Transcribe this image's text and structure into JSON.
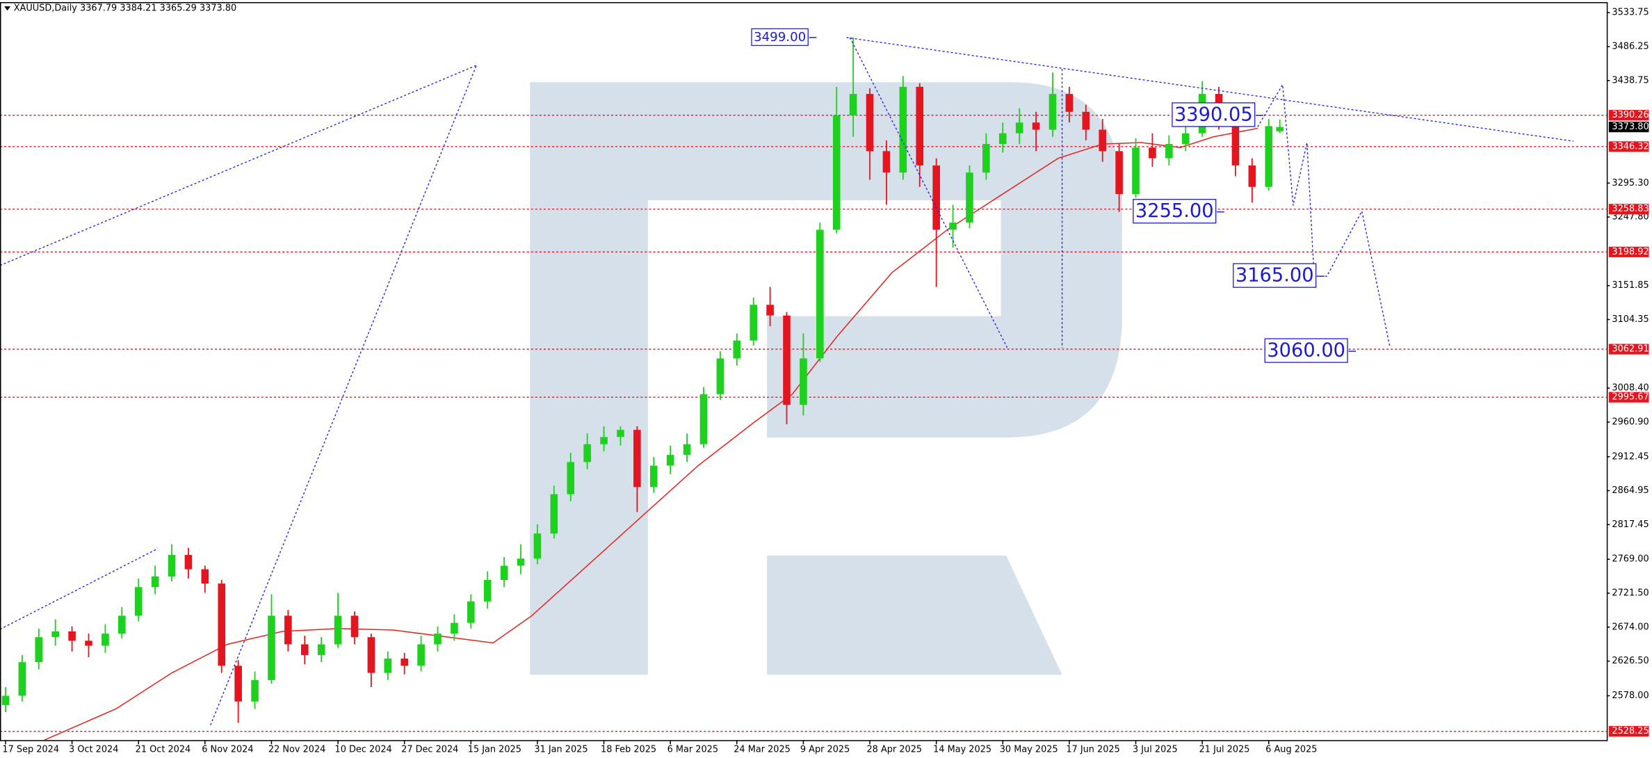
{
  "chart_data": {
    "type": "candlestick",
    "header": "XAUUSD,Daily  3367.79 3384.21 3365.29 3373.80",
    "ylim": [
      2516,
      3548.5
    ],
    "xlim": [
      -1,
      289
    ],
    "yticks": [
      3533.75,
      3486.25,
      3438.75,
      {
        "value": 3295.3,
        "label": "3295.30"
      },
      {
        "value": 3247.8,
        "label": "3247.80"
      },
      3151.85,
      3104.35,
      {
        "value": 3008.4,
        "label": "3008.40"
      },
      {
        "value": 2960.9,
        "label": "2960.90"
      },
      2912.45,
      2864.95,
      2817.45,
      {
        "value": 2769,
        "label": "2769.00"
      },
      {
        "value": 2721.5,
        "label": "2721.50"
      },
      {
        "value": 2674,
        "label": "2674.00"
      },
      {
        "value": 2626.5,
        "label": "2626.50"
      },
      {
        "value": 2578,
        "label": "2578.00"
      }
    ],
    "xticks": [
      {
        "value": 0,
        "label": "17 Sep 2024"
      },
      {
        "value": 12,
        "label": "3 Oct 2024"
      },
      {
        "value": 24,
        "label": "21 Oct 2024"
      },
      {
        "value": 36,
        "label": "6 Nov 2024"
      },
      {
        "value": 48,
        "label": "22 Nov 2024"
      },
      {
        "value": 60,
        "label": "10 Dec 2024"
      },
      {
        "value": 72,
        "label": "27 Dec 2024"
      },
      {
        "value": 84,
        "label": "15 Jan 2025"
      },
      {
        "value": 96,
        "label": "31 Jan 2025"
      },
      {
        "value": 108,
        "label": "18 Feb 2025"
      },
      {
        "value": 120,
        "label": "6 Mar 2025"
      },
      {
        "value": 132,
        "label": "24 Mar 2025"
      },
      {
        "value": 144,
        "label": "9 Apr 2025"
      },
      {
        "value": 156,
        "label": "28 Apr 2025"
      },
      {
        "value": 168,
        "label": "14 May 2025"
      },
      {
        "value": 180,
        "label": "30 May 2025"
      },
      {
        "value": 192,
        "label": "17 Jun 2025"
      },
      {
        "value": 204,
        "label": "3 Jul 2025"
      },
      {
        "value": 216,
        "label": "21 Jul 2025"
      },
      {
        "value": 228,
        "label": "6 Aug 2025"
      }
    ],
    "up_color": "#1ed11e",
    "down_color": "#e4151f",
    "candles": {
      "x": [
        0,
        3,
        6,
        9,
        12,
        15,
        18,
        21,
        24,
        27,
        30,
        33,
        36,
        39,
        42,
        45,
        48,
        51,
        54,
        57,
        60,
        63,
        66,
        69,
        72,
        75,
        78,
        81,
        84,
        87,
        90,
        93,
        96,
        99,
        102,
        105,
        108,
        111,
        114,
        117,
        120,
        123,
        126,
        129,
        132,
        135,
        138,
        141,
        144,
        147,
        150,
        153,
        156,
        159,
        162,
        165,
        168,
        171,
        174,
        177,
        180,
        183,
        186,
        189,
        192,
        195,
        198,
        201,
        204,
        207,
        210,
        213,
        216,
        219,
        222,
        225,
        228,
        230
      ],
      "open": [
        2565,
        2578,
        2625,
        2660,
        2668,
        2655,
        2648,
        2665,
        2690,
        2730,
        2745,
        2775,
        2755,
        2735,
        2620,
        2570,
        2600,
        2690,
        2650,
        2635,
        2650,
        2690,
        2660,
        2610,
        2630,
        2620,
        2650,
        2665,
        2680,
        2710,
        2740,
        2760,
        2770,
        2805,
        2860,
        2905,
        2930,
        2940,
        2950,
        2870,
        2900,
        2915,
        2930,
        3000,
        3050,
        3075,
        3125,
        3110,
        2985,
        3050,
        3230,
        3390,
        3420,
        3340,
        3310,
        3430,
        3320,
        3230,
        3240,
        3310,
        3350,
        3365,
        3380,
        3370,
        3420,
        3395,
        3370,
        3340,
        3280,
        3345,
        3330,
        3350,
        3365,
        3420,
        3385,
        3320,
        3290,
        3367.79
      ],
      "high": [
        2590,
        2635,
        2672,
        2685,
        2675,
        2665,
        2678,
        2702,
        2742,
        2760,
        2790,
        2785,
        2760,
        2740,
        2628,
        2612,
        2720,
        2698,
        2662,
        2660,
        2722,
        2696,
        2665,
        2640,
        2638,
        2662,
        2675,
        2692,
        2720,
        2752,
        2772,
        2790,
        2818,
        2872,
        2918,
        2945,
        2955,
        2955,
        2955,
        2912,
        2928,
        2945,
        3010,
        3060,
        3085,
        3135,
        3150,
        3115,
        3085,
        3240,
        3430,
        3499,
        3428,
        3355,
        3445,
        3435,
        3330,
        3265,
        3320,
        3365,
        3380,
        3400,
        3395,
        3450,
        3430,
        3405,
        3385,
        3350,
        3358,
        3365,
        3362,
        3375,
        3438,
        3430,
        3392,
        3330,
        3385,
        3384.21
      ],
      "low": [
        2555,
        2570,
        2615,
        2648,
        2640,
        2632,
        2638,
        2658,
        2682,
        2720,
        2738,
        2742,
        2722,
        2610,
        2540,
        2560,
        2595,
        2640,
        2622,
        2625,
        2645,
        2650,
        2590,
        2600,
        2608,
        2612,
        2640,
        2655,
        2672,
        2700,
        2730,
        2748,
        2762,
        2798,
        2850,
        2895,
        2920,
        2928,
        2835,
        2862,
        2888,
        2905,
        2925,
        2992,
        3040,
        3068,
        3095,
        2958,
        2970,
        3045,
        3225,
        3360,
        3300,
        3265,
        3300,
        3290,
        3150,
        3205,
        3232,
        3300,
        3338,
        3350,
        3340,
        3360,
        3380,
        3355,
        3325,
        3255,
        3275,
        3318,
        3320,
        3340,
        3360,
        3370,
        3305,
        3268,
        3285,
        3365.29
      ],
      "close": [
        2578,
        2625,
        2660,
        2668,
        2655,
        2648,
        2665,
        2690,
        2730,
        2745,
        2775,
        2755,
        2735,
        2620,
        2570,
        2600,
        2690,
        2650,
        2635,
        2650,
        2690,
        2660,
        2610,
        2630,
        2620,
        2650,
        2665,
        2680,
        2710,
        2740,
        2760,
        2770,
        2805,
        2860,
        2905,
        2930,
        2940,
        2950,
        2870,
        2900,
        2915,
        2930,
        3000,
        3050,
        3075,
        3125,
        3110,
        2985,
        3050,
        3230,
        3390,
        3420,
        3340,
        3310,
        3430,
        3320,
        3230,
        3240,
        3310,
        3350,
        3365,
        3380,
        3370,
        3420,
        3395,
        3370,
        3340,
        3280,
        3345,
        3330,
        3350,
        3365,
        3420,
        3385,
        3320,
        3290,
        3375,
        3373.8
      ]
    },
    "ma": {
      "color": "#e8231e",
      "x": [
        7,
        20,
        30,
        40,
        50,
        60,
        70,
        80,
        88,
        95,
        105,
        115,
        125,
        135,
        142,
        150,
        160,
        170,
        180,
        190,
        198,
        205,
        212,
        218,
        226
      ],
      "values": [
        2516,
        2560,
        2610,
        2650,
        2668,
        2672,
        2670,
        2660,
        2652,
        2690,
        2760,
        2830,
        2900,
        2960,
        3000,
        3080,
        3170,
        3230,
        3280,
        3330,
        3350,
        3352,
        3345,
        3360,
        3372
      ]
    },
    "current_price": {
      "value": 3373.8,
      "label": "3373.80"
    },
    "levels": [
      {
        "value": 3390.26,
        "label": "3390.26"
      },
      {
        "value": 3346.32,
        "label": "3346.32"
      },
      {
        "value": 3258.83,
        "label": "3258.83"
      },
      {
        "value": 3198.92,
        "label": "3198.92"
      },
      {
        "value": 3062.91,
        "label": "3062.91"
      },
      {
        "value": 2995.67,
        "label": "2995.67"
      },
      {
        "value": 2528.25,
        "label": "2528.25"
      }
    ],
    "level_color": "#e4151f",
    "trend_color": "#2222ee",
    "trendlines": [
      {
        "x": [
          -1,
          85
        ],
        "values": [
          3180,
          3460
        ]
      },
      {
        "x": [
          -1,
          27.5
        ],
        "values": [
          2671,
          2784
        ]
      },
      {
        "x": [
          37,
          85
        ],
        "values": [
          2537,
          3460
        ]
      },
      {
        "x": [
          151.8,
          283
        ],
        "values": [
          3499,
          3354
        ]
      },
      {
        "x": [
          152.4,
          180.8
        ],
        "values": [
          3499,
          3065
        ]
      },
      {
        "x": [
          190.7,
          190.7
        ],
        "values": [
          3455,
          3065
        ]
      },
      {
        "x": [
          226,
          230.5,
          232.4,
          234.9,
          236.2,
          238.5,
          244.8,
          249.9
        ],
        "values": [
          3374,
          3433,
          3264,
          3352,
          3165,
          3165,
          3256,
          3065
        ]
      }
    ],
    "annotations": [
      {
        "value": 3499,
        "label": "3499.00"
      },
      {
        "value": 3390.05,
        "label": "3390.05"
      },
      {
        "value": 3255,
        "label": "3255.00"
      },
      {
        "value": 3165,
        "label": "3165.00"
      },
      {
        "value": 3060,
        "label": "3060.00"
      }
    ]
  }
}
